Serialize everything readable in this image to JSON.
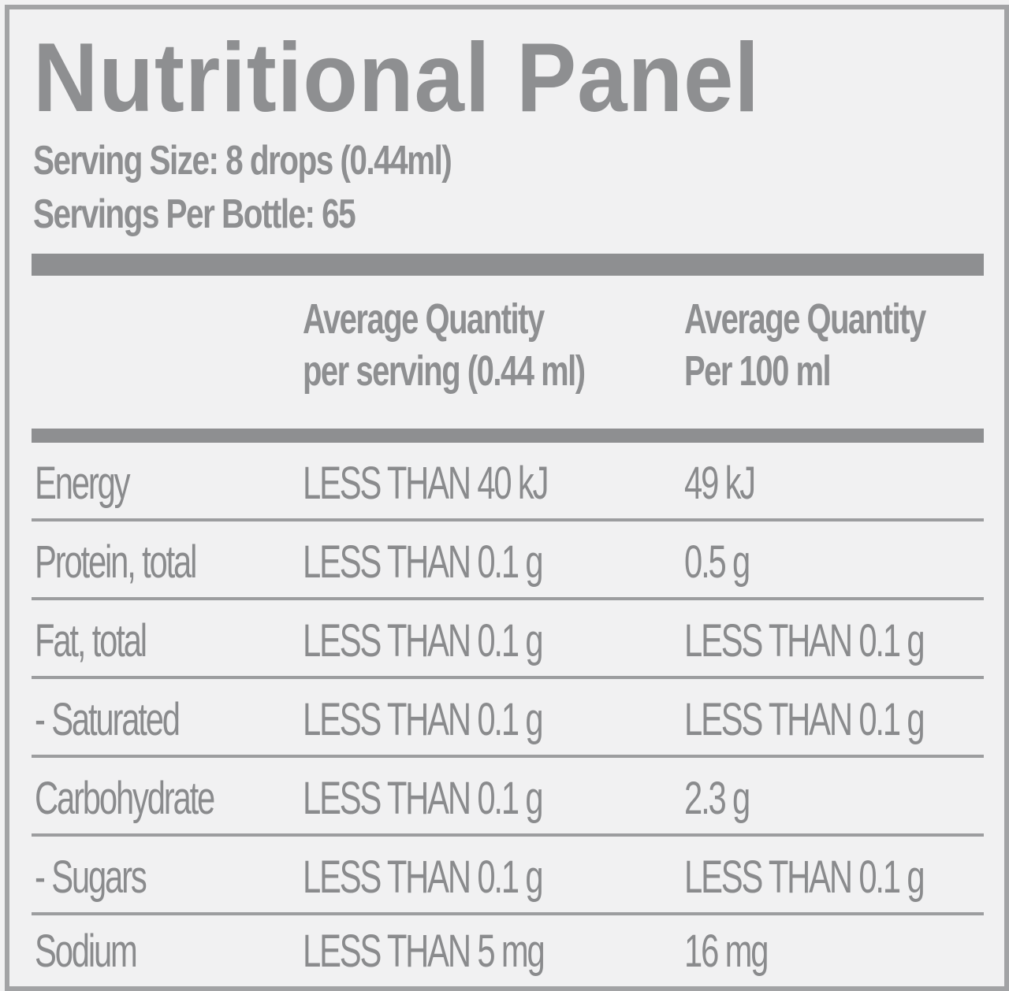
{
  "title": "Nutritional Panel",
  "serving_size": "Serving Size: 8 drops (0.44ml)",
  "servings_per_bottle": "Servings Per Bottle: 65",
  "headers": {
    "per_serving_line1": "Average Quantity",
    "per_serving_line2": "per serving (0.44 ml)",
    "per_100_line1": "Average Quantity",
    "per_100_line2": "Per 100 ml"
  },
  "rows": [
    {
      "nutrient": "Energy",
      "per_serving": "LESS THAN 40 kJ",
      "per_100ml": "49 kJ"
    },
    {
      "nutrient": "Protein, total",
      "per_serving": "LESS THAN 0.1 g",
      "per_100ml": "0.5 g"
    },
    {
      "nutrient": "Fat, total",
      "per_serving": "LESS THAN 0.1 g",
      "per_100ml": "LESS THAN 0.1 g"
    },
    {
      "nutrient": "- Saturated",
      "per_serving": "LESS THAN 0.1 g",
      "per_100ml": "LESS THAN 0.1 g"
    },
    {
      "nutrient": "Carbohydrate",
      "per_serving": "LESS THAN 0.1 g",
      "per_100ml": "2.3 g"
    },
    {
      "nutrient": "- Sugars",
      "per_serving": "LESS THAN 0.1 g",
      "per_100ml": "LESS THAN 0.1 g"
    },
    {
      "nutrient": "Sodium",
      "per_serving": "LESS THAN 5 mg",
      "per_100ml": "16 mg"
    }
  ],
  "colors": {
    "text": "#8a8b8d",
    "border": "#a2a3a5",
    "background": "#f1f1f2"
  }
}
